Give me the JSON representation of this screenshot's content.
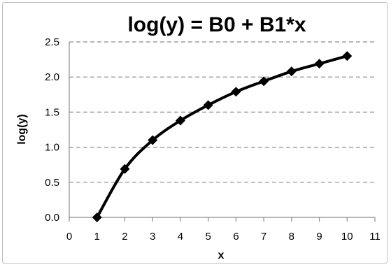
{
  "chart_data": {
    "type": "line",
    "title": "log(y) = B0 + B1*x",
    "xlabel": "x",
    "ylabel": "log(y)",
    "xlim": [
      0,
      11
    ],
    "ylim": [
      0,
      2.5
    ],
    "x_ticks": [
      "0",
      "1",
      "2",
      "3",
      "4",
      "5",
      "6",
      "7",
      "8",
      "9",
      "10",
      "11"
    ],
    "y_ticks": [
      "0.0",
      "0.5",
      "1.0",
      "1.5",
      "2.0",
      "2.5"
    ],
    "grid": "horizontal dashed",
    "legend": "none",
    "series": [
      {
        "x": [
          1,
          2,
          3,
          4,
          5,
          6,
          7,
          8,
          9,
          10
        ],
        "values": [
          0.0,
          0.69,
          1.1,
          1.38,
          1.6,
          1.79,
          1.94,
          2.08,
          2.19,
          2.3
        ],
        "color": "#000000",
        "marker": "diamond"
      }
    ]
  }
}
